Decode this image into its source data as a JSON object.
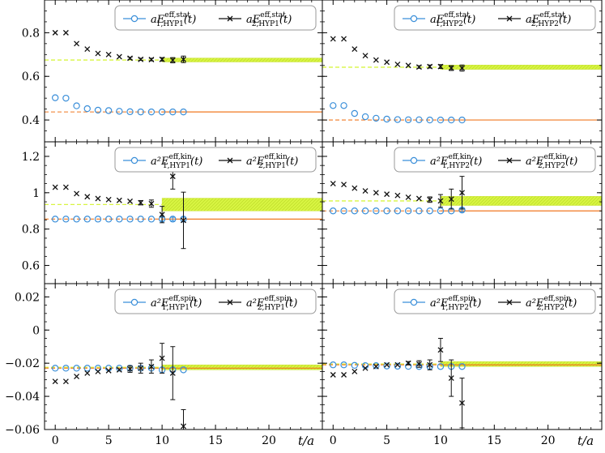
{
  "chart_data": [
    {
      "type": "scatter",
      "panel": "row1-left",
      "ylim": [
        0.3,
        0.95
      ],
      "yticks": [
        0.4,
        0.6,
        0.8
      ],
      "ytick_labels": [
        "0.4",
        "0.6",
        "0.8"
      ],
      "xlim": [
        -1,
        25
      ],
      "legend": {
        "s1": "aE",
        "s1_sup": "eff,stat",
        "s1_sub": "1,HYP1",
        "s2": "aE",
        "s2_sup": "eff,stat",
        "s2_sub": "2,HYP1",
        "arg": "(t)"
      },
      "series": [
        {
          "name": "aE^eff,stat_1,HYP1(t)",
          "marker": "circle",
          "x": [
            0,
            1,
            2,
            3,
            4,
            5,
            6,
            7,
            8,
            9,
            10,
            11,
            12
          ],
          "y": [
            0.502,
            0.5,
            0.465,
            0.452,
            0.445,
            0.443,
            0.44,
            0.438,
            0.437,
            0.437,
            0.437,
            0.437,
            0.437
          ],
          "err": [
            0,
            0,
            0,
            0,
            0,
            0,
            0,
            0,
            0,
            0,
            0,
            0,
            0
          ]
        },
        {
          "name": "aE^eff,stat_2,HYP1(t)",
          "marker": "cross",
          "x": [
            0,
            1,
            2,
            3,
            4,
            5,
            6,
            7,
            8,
            9,
            10,
            11,
            12
          ],
          "y": [
            0.8,
            0.8,
            0.75,
            0.725,
            0.705,
            0.7,
            0.69,
            0.683,
            0.678,
            0.677,
            0.678,
            0.674,
            0.678
          ],
          "err": [
            0,
            0,
            0,
            0,
            0,
            0,
            0,
            0.005,
            0.005,
            0.006,
            0.008,
            0.012,
            0.015
          ]
        }
      ],
      "fit1": {
        "value": 0.437,
        "fit_from": 10,
        "err": 0
      },
      "fit2": {
        "value": 0.675,
        "fit_from": 10,
        "err": 0.009
      }
    },
    {
      "type": "scatter",
      "panel": "row1-right",
      "ylim": [
        0.3,
        0.95
      ],
      "yticks": [
        0.4,
        0.6,
        0.8
      ],
      "ytick_labels": [
        "",
        "",
        ""
      ],
      "xlim": [
        -1,
        25
      ],
      "legend": {
        "s1": "aE",
        "s1_sup": "eff,stat",
        "s1_sub": "1,HYP2",
        "s2": "aE",
        "s2_sup": "eff,stat",
        "s2_sub": "2,HYP2",
        "arg": "(t)"
      },
      "series": [
        {
          "name": "aE^eff,stat_1,HYP2(t)",
          "marker": "circle",
          "x": [
            0,
            1,
            2,
            3,
            4,
            5,
            6,
            7,
            8,
            9,
            10,
            11,
            12
          ],
          "y": [
            0.466,
            0.466,
            0.43,
            0.415,
            0.408,
            0.404,
            0.402,
            0.401,
            0.401,
            0.4,
            0.4,
            0.4,
            0.4
          ],
          "err": [
            0,
            0,
            0,
            0,
            0,
            0,
            0,
            0,
            0,
            0,
            0,
            0,
            0
          ]
        },
        {
          "name": "aE^eff,stat_2,HYP2(t)",
          "marker": "cross",
          "x": [
            0,
            1,
            2,
            3,
            4,
            5,
            6,
            7,
            8,
            9,
            10,
            11,
            12
          ],
          "y": [
            0.772,
            0.772,
            0.725,
            0.695,
            0.675,
            0.665,
            0.655,
            0.65,
            0.643,
            0.645,
            0.645,
            0.638,
            0.638
          ],
          "err": [
            0,
            0,
            0,
            0,
            0,
            0,
            0,
            0,
            0.006,
            0.007,
            0.009,
            0.011,
            0.014
          ]
        }
      ],
      "fit1": {
        "value": 0.4,
        "fit_from": 10,
        "err": 0
      },
      "fit2": {
        "value": 0.642,
        "fit_from": 10,
        "err": 0.01
      }
    },
    {
      "type": "scatter",
      "panel": "row2-left",
      "ylim": [
        0.5,
        1.28
      ],
      "yticks": [
        0.6,
        0.8,
        1.0,
        1.2
      ],
      "ytick_labels": [
        "0.6",
        "0.8",
        "1",
        "1.2"
      ],
      "xlim": [
        -1,
        25
      ],
      "legend": {
        "s1": "a²E",
        "s1_sup": "eff,kin",
        "s1_sub": "1,HYP1",
        "s2": "a²E",
        "s2_sup": "eff,kin",
        "s2_sub": "2,HYP1",
        "arg": "(t)"
      },
      "series": [
        {
          "name": "a²E^eff,kin_1,HYP1(t)",
          "marker": "circle",
          "x": [
            0,
            1,
            2,
            3,
            4,
            5,
            6,
            7,
            8,
            9,
            10,
            11,
            12
          ],
          "y": [
            0.855,
            0.855,
            0.855,
            0.855,
            0.855,
            0.855,
            0.855,
            0.855,
            0.855,
            0.855,
            0.855,
            0.855,
            0.855
          ],
          "err": [
            0,
            0,
            0,
            0,
            0,
            0,
            0,
            0,
            0,
            0,
            0.01,
            0.01,
            0.01
          ]
        },
        {
          "name": "a²E^eff,kin_2,HYP1(t)",
          "marker": "cross",
          "x": [
            0,
            1,
            2,
            3,
            4,
            5,
            6,
            7,
            8,
            9,
            10,
            11,
            12
          ],
          "y": [
            1.03,
            1.03,
            0.995,
            0.978,
            0.968,
            0.962,
            0.958,
            0.953,
            0.945,
            0.94,
            0.88,
            1.09,
            0.848
          ],
          "err": [
            0,
            0,
            0,
            0,
            0,
            0,
            0,
            0,
            0.012,
            0.02,
            0.045,
            0.07,
            0.155
          ]
        }
      ],
      "fit1": {
        "value": 0.855,
        "fit_from": 10,
        "err": 0
      },
      "fit2": {
        "value": 0.935,
        "fit_from": 10,
        "err": 0.035
      }
    },
    {
      "type": "scatter",
      "panel": "row2-right",
      "ylim": [
        0.5,
        1.28
      ],
      "yticks": [
        0.6,
        0.8,
        1.0,
        1.2
      ],
      "ytick_labels": [
        "",
        "",
        "",
        ""
      ],
      "xlim": [
        -1,
        25
      ],
      "legend": {
        "s1": "a²E",
        "s1_sup": "eff,kin",
        "s1_sub": "1,HYP2",
        "s2": "a²E",
        "s2_sup": "eff,kin",
        "s2_sub": "2,HYP2",
        "arg": "(t)"
      },
      "series": [
        {
          "name": "a²E^eff,kin_1,HYP2(t)",
          "marker": "circle",
          "x": [
            0,
            1,
            2,
            3,
            4,
            5,
            6,
            7,
            8,
            9,
            10,
            11,
            12
          ],
          "y": [
            0.9,
            0.9,
            0.9,
            0.9,
            0.9,
            0.9,
            0.9,
            0.9,
            0.9,
            0.9,
            0.9,
            0.9,
            0.905
          ],
          "err": [
            0,
            0,
            0,
            0,
            0,
            0,
            0,
            0,
            0,
            0,
            0,
            0,
            0.01
          ]
        },
        {
          "name": "a²E^eff,kin_2,HYP2(t)",
          "marker": "cross",
          "x": [
            0,
            1,
            2,
            3,
            4,
            5,
            6,
            7,
            8,
            9,
            10,
            11,
            12
          ],
          "y": [
            1.05,
            1.045,
            1.025,
            1.01,
            1.0,
            0.992,
            0.985,
            0.975,
            0.968,
            0.962,
            0.955,
            0.965,
            1.0
          ],
          "err": [
            0,
            0,
            0,
            0,
            0,
            0,
            0,
            0,
            0,
            0.015,
            0.035,
            0.055,
            0.09
          ]
        }
      ],
      "fit1": {
        "value": 0.9,
        "fit_from": 10,
        "err": 0
      },
      "fit2": {
        "value": 0.955,
        "fit_from": 10,
        "err": 0.025
      }
    },
    {
      "type": "scatter",
      "panel": "row3-left",
      "ylim": [
        -0.06,
        0.028
      ],
      "yticks": [
        -0.06,
        -0.04,
        -0.02,
        0,
        0.02
      ],
      "ytick_labels": [
        "−0.06",
        "−0.04",
        "−0.02",
        "0",
        "0.02"
      ],
      "xlim": [
        -1,
        25
      ],
      "xticks": [
        0,
        5,
        10,
        15,
        20
      ],
      "xtick_labels": [
        "0",
        "5",
        "10",
        "15",
        "20"
      ],
      "xlabel": "t/a",
      "legend": {
        "s1": "a²E",
        "s1_sup": "eff,spin",
        "s1_sub": "1,HYP1",
        "s2": "a²E",
        "s2_sup": "eff,spin",
        "s2_sub": "2,HYP1",
        "arg": "(t)"
      },
      "series": [
        {
          "name": "a²E^eff,spin_1,HYP1(t)",
          "marker": "circle",
          "x": [
            0,
            1,
            2,
            3,
            4,
            5,
            6,
            7,
            8,
            9,
            10,
            11,
            12
          ],
          "y": [
            -0.023,
            -0.023,
            -0.023,
            -0.023,
            -0.023,
            -0.023,
            -0.023,
            -0.023,
            -0.023,
            -0.023,
            -0.024,
            -0.024,
            -0.024
          ],
          "err": [
            0,
            0,
            0,
            0,
            0,
            0,
            0,
            0,
            0,
            0,
            0,
            0,
            0
          ]
        },
        {
          "name": "a²E^eff,spin_2,HYP1(t)",
          "marker": "cross",
          "x": [
            0,
            1,
            2,
            3,
            4,
            5,
            6,
            7,
            8,
            9,
            10,
            11,
            12
          ],
          "y": [
            -0.031,
            -0.031,
            -0.028,
            -0.026,
            -0.025,
            -0.0245,
            -0.024,
            -0.0235,
            -0.023,
            -0.022,
            -0.017,
            -0.026,
            -0.058
          ],
          "err": [
            0,
            0,
            0,
            0,
            0,
            0,
            0,
            0.002,
            0.003,
            0.004,
            0.009,
            0.016,
            0.01
          ]
        }
      ],
      "fit1": {
        "value": -0.023,
        "fit_from": 10,
        "err": 0
      },
      "fit2": {
        "value": -0.0225,
        "fit_from": 10,
        "err": 0.0015
      }
    },
    {
      "type": "scatter",
      "panel": "row3-right",
      "ylim": [
        -0.06,
        0.028
      ],
      "yticks": [
        -0.06,
        -0.04,
        -0.02,
        0,
        0.02
      ],
      "ytick_labels": [
        "",
        "",
        "",
        "",
        ""
      ],
      "xlim": [
        -1,
        25
      ],
      "xticks": [
        0,
        5,
        10,
        15,
        20
      ],
      "xtick_labels": [
        "0",
        "5",
        "10",
        "15",
        "20"
      ],
      "xlabel": "t/a",
      "legend": {
        "s1": "a²E",
        "s1_sup": "eff,spin",
        "s1_sub": "1,HYP2",
        "s2": "a²E",
        "s2_sup": "eff,spin",
        "s2_sub": "2,HYP2",
        "arg": "(t)"
      },
      "series": [
        {
          "name": "a²E^eff,spin_1,HYP2(t)",
          "marker": "circle",
          "x": [
            0,
            1,
            2,
            3,
            4,
            5,
            6,
            7,
            8,
            9,
            10,
            11,
            12
          ],
          "y": [
            -0.021,
            -0.021,
            -0.0213,
            -0.0215,
            -0.0215,
            -0.0217,
            -0.0218,
            -0.0219,
            -0.022,
            -0.022,
            -0.022,
            -0.022,
            -0.022
          ],
          "err": [
            0,
            0,
            0,
            0,
            0,
            0,
            0,
            0,
            0,
            0,
            0,
            0,
            0
          ]
        },
        {
          "name": "a²E^eff,spin_2,HYP2(t)",
          "marker": "cross",
          "x": [
            0,
            1,
            2,
            3,
            4,
            5,
            6,
            7,
            8,
            9,
            10,
            11,
            12
          ],
          "y": [
            -0.027,
            -0.027,
            -0.025,
            -0.023,
            -0.022,
            -0.021,
            -0.021,
            -0.02,
            -0.0205,
            -0.021,
            -0.012,
            -0.029,
            -0.044
          ],
          "err": [
            0,
            0,
            0,
            0,
            0,
            0,
            0,
            0.001,
            0.002,
            0.003,
            0.007,
            0.011,
            0.015
          ]
        }
      ],
      "fit1": {
        "value": -0.021,
        "fit_from": 10,
        "err": 0
      },
      "fit2": {
        "value": -0.0205,
        "fit_from": 10,
        "err": 0.0015
      }
    }
  ],
  "colors": {
    "series1": "#3b8fd9",
    "series2": "#111111",
    "band": "#d8f542",
    "fitline": "#f07820",
    "axis": "#000000"
  }
}
